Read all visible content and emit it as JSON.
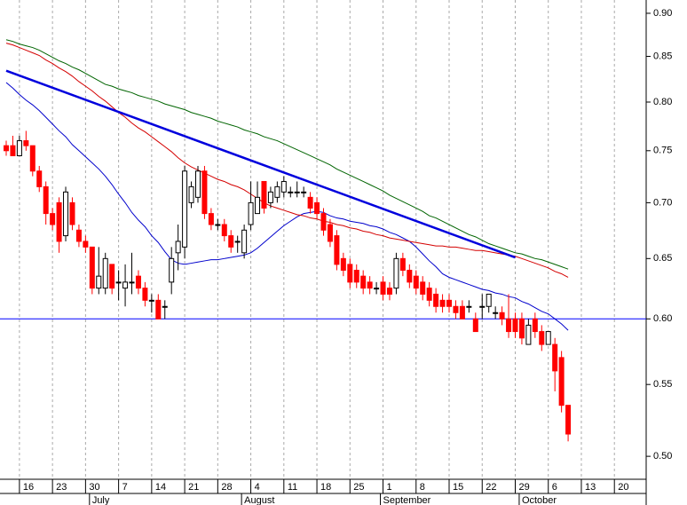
{
  "chart_data": {
    "type": "candlestick",
    "log": true,
    "ylim": [
      0.485,
      0.916
    ],
    "yticks": [
      {
        "value": 0.5,
        "label": "0.50"
      },
      {
        "value": 0.55,
        "label": "0.55"
      },
      {
        "value": 0.6,
        "label": "0.60"
      },
      {
        "value": 0.65,
        "label": "0.65"
      },
      {
        "value": 0.7,
        "label": "0.70"
      },
      {
        "value": 0.75,
        "label": "0.75"
      },
      {
        "value": 0.8,
        "label": "0.80"
      },
      {
        "value": 0.85,
        "label": "0.85"
      },
      {
        "value": 0.9,
        "label": "0.90"
      }
    ],
    "grid": true,
    "up_color": "#ffffff",
    "down_color": "#ff0000",
    "categories": [
      null,
      null,
      "16",
      null,
      null,
      null,
      null,
      "23",
      null,
      null,
      null,
      null,
      "30",
      null,
      null,
      null,
      null,
      "7",
      null,
      null,
      null,
      null,
      "14",
      null,
      null,
      null,
      null,
      "21",
      null,
      null,
      null,
      null,
      "28",
      null,
      null,
      null,
      null,
      "4",
      null,
      null,
      null,
      null,
      "11",
      null,
      null,
      null,
      null,
      "18",
      null,
      null,
      null,
      null,
      "25",
      null,
      null,
      null,
      null,
      "1",
      null,
      null,
      null,
      null,
      "8",
      null,
      null,
      null,
      null,
      "15",
      null,
      null,
      null,
      null,
      "22",
      null,
      null,
      null,
      null,
      "29",
      null,
      null,
      null,
      null,
      "6",
      null,
      null,
      null,
      null,
      "13",
      null,
      null,
      null,
      null,
      "20",
      null,
      null,
      null,
      null
    ],
    "months": [
      null,
      null,
      null,
      null,
      null,
      null,
      null,
      null,
      null,
      null,
      null,
      null,
      null,
      "July",
      null,
      null,
      null,
      null,
      null,
      null,
      null,
      null,
      null,
      null,
      null,
      null,
      null,
      null,
      null,
      null,
      null,
      null,
      null,
      null,
      null,
      null,
      "August",
      null,
      null,
      null,
      null,
      null,
      null,
      null,
      null,
      null,
      null,
      null,
      null,
      null,
      null,
      null,
      null,
      null,
      null,
      null,
      null,
      "September",
      null,
      null,
      null,
      null,
      null,
      null,
      null,
      null,
      null,
      null,
      null,
      null,
      null,
      null,
      null,
      null,
      null,
      null,
      null,
      null,
      "October",
      null,
      null,
      null,
      null,
      null,
      null,
      null,
      null,
      null,
      null,
      null,
      null,
      null,
      null,
      null,
      null,
      null
    ],
    "open": [
      0.755,
      0.755,
      0.745,
      0.76,
      0.755,
      0.73,
      0.715,
      0.69,
      0.7,
      0.67,
      0.7,
      0.675,
      0.665,
      0.66,
      0.625,
      0.625,
      0.645,
      0.63,
      0.625,
      0.63,
      0.635,
      0.625,
      0.615,
      0.615,
      0.61,
      0.63,
      0.655,
      0.66,
      0.7,
      0.705,
      0.73,
      0.69,
      0.68,
      0.68,
      0.67,
      0.665,
      0.655,
      0.68,
      0.69,
      0.72,
      0.7,
      0.705,
      0.71,
      0.71,
      0.71,
      0.71,
      0.705,
      0.7,
      0.69,
      0.68,
      0.67,
      0.65,
      0.645,
      0.64,
      0.635,
      0.63,
      0.625,
      0.63,
      0.625,
      0.625,
      0.65,
      0.64,
      0.635,
      0.63,
      0.625,
      0.62,
      0.615,
      0.615,
      0.61,
      0.61,
      0.61,
      0.6,
      0.61,
      0.61,
      0.605,
      0.605,
      0.6,
      0.6,
      0.6,
      0.58,
      0.6,
      0.59,
      0.58,
      0.58,
      0.57,
      0.535,
      null,
      null,
      null,
      null,
      null,
      null,
      null,
      null,
      null,
      null,
      null
    ],
    "high": [
      0.76,
      0.765,
      0.765,
      0.77,
      0.755,
      0.735,
      0.72,
      0.695,
      0.705,
      0.715,
      0.705,
      0.68,
      0.67,
      0.66,
      0.66,
      0.655,
      0.645,
      0.64,
      0.645,
      0.655,
      0.64,
      0.63,
      0.62,
      0.62,
      0.615,
      0.66,
      0.68,
      0.735,
      0.72,
      0.735,
      0.735,
      0.695,
      0.685,
      0.685,
      0.675,
      0.67,
      0.68,
      0.72,
      0.72,
      0.72,
      0.715,
      0.72,
      0.725,
      0.715,
      0.72,
      0.715,
      0.71,
      0.705,
      0.695,
      0.685,
      0.675,
      0.655,
      0.65,
      0.645,
      0.64,
      0.635,
      0.63,
      0.635,
      0.63,
      0.655,
      0.655,
      0.645,
      0.64,
      0.635,
      0.63,
      0.625,
      0.62,
      0.62,
      0.615,
      0.615,
      0.615,
      0.605,
      0.62,
      0.62,
      0.61,
      0.61,
      0.62,
      0.605,
      0.605,
      0.6,
      0.605,
      0.595,
      0.59,
      0.585,
      0.575,
      0.535,
      null,
      null,
      null,
      null,
      null,
      null,
      null,
      null,
      null,
      null,
      null
    ],
    "low": [
      0.745,
      0.745,
      0.745,
      0.75,
      0.725,
      0.71,
      0.68,
      0.675,
      0.655,
      0.665,
      0.675,
      0.66,
      0.655,
      0.62,
      0.62,
      0.62,
      0.62,
      0.615,
      0.61,
      0.62,
      0.62,
      0.61,
      0.605,
      0.6,
      0.6,
      0.62,
      0.64,
      0.65,
      0.695,
      0.7,
      0.685,
      0.675,
      0.675,
      0.665,
      0.655,
      0.655,
      0.65,
      0.675,
      0.69,
      0.69,
      0.695,
      0.7,
      0.705,
      0.705,
      0.705,
      0.705,
      0.69,
      0.685,
      0.67,
      0.66,
      0.64,
      0.635,
      0.625,
      0.625,
      0.62,
      0.62,
      0.62,
      0.615,
      0.615,
      0.62,
      0.635,
      0.625,
      0.62,
      0.615,
      0.61,
      0.605,
      0.605,
      0.605,
      0.6,
      0.6,
      0.605,
      0.59,
      0.6,
      0.605,
      0.6,
      0.595,
      0.585,
      0.585,
      0.58,
      0.58,
      0.585,
      0.575,
      0.58,
      0.545,
      0.53,
      0.51,
      null,
      null,
      null,
      null,
      null,
      null,
      null,
      null,
      null,
      null,
      null
    ],
    "close": [
      0.75,
      0.745,
      0.76,
      0.755,
      0.73,
      0.715,
      0.69,
      0.68,
      0.665,
      0.71,
      0.68,
      0.665,
      0.66,
      0.625,
      0.635,
      0.65,
      0.625,
      0.63,
      0.63,
      0.63,
      0.625,
      0.615,
      0.615,
      0.6,
      0.61,
      0.65,
      0.665,
      0.73,
      0.715,
      0.73,
      0.69,
      0.68,
      0.68,
      0.67,
      0.66,
      0.665,
      0.675,
      0.7,
      0.705,
      0.695,
      0.71,
      0.715,
      0.72,
      0.71,
      0.71,
      0.71,
      0.695,
      0.69,
      0.675,
      0.665,
      0.645,
      0.64,
      0.63,
      0.63,
      0.625,
      0.625,
      0.625,
      0.62,
      0.62,
      0.65,
      0.64,
      0.63,
      0.625,
      0.62,
      0.615,
      0.61,
      0.61,
      0.61,
      0.605,
      0.6,
      0.61,
      0.59,
      0.61,
      0.62,
      0.605,
      0.6,
      0.59,
      0.59,
      0.585,
      0.595,
      0.59,
      0.58,
      0.59,
      0.56,
      0.535,
      0.515,
      null,
      null,
      null,
      null,
      null,
      null,
      null,
      null,
      null,
      null,
      null
    ],
    "lines": [
      {
        "color": "#0000cc",
        "values": [
          0.821,
          0.815,
          0.808,
          0.802,
          0.797,
          0.791,
          0.784,
          0.777,
          0.77,
          0.764,
          0.756,
          0.75,
          0.744,
          0.738,
          0.732,
          0.725,
          0.717,
          0.708,
          0.7,
          0.691,
          0.684,
          0.678,
          0.67,
          0.664,
          0.656,
          0.649,
          0.646,
          0.645,
          0.646,
          0.647,
          0.648,
          0.649,
          0.649,
          0.65,
          0.651,
          0.652,
          0.653,
          0.655,
          0.659,
          0.664,
          0.669,
          0.674,
          0.679,
          0.683,
          0.687,
          0.69,
          0.691,
          0.692,
          0.691,
          0.688,
          0.686,
          0.685,
          0.683,
          0.682,
          0.681,
          0.679,
          0.678,
          0.676,
          0.673,
          0.671,
          0.668,
          0.665,
          0.66,
          0.654,
          0.648,
          0.643,
          0.637,
          0.634,
          0.632,
          0.63,
          0.628,
          0.626,
          0.624,
          0.623,
          0.621,
          0.62,
          0.618,
          0.617,
          0.614,
          0.612,
          0.609,
          0.606,
          0.604,
          0.6,
          0.596,
          0.591,
          null,
          null,
          null,
          null,
          null,
          null,
          null,
          null,
          null,
          null,
          null
        ]
      },
      {
        "color": "#d40000",
        "values": [
          0.865,
          0.863,
          0.86,
          0.857,
          0.854,
          0.851,
          0.846,
          0.842,
          0.837,
          0.833,
          0.828,
          0.822,
          0.817,
          0.812,
          0.806,
          0.801,
          0.795,
          0.789,
          0.784,
          0.778,
          0.773,
          0.769,
          0.764,
          0.759,
          0.754,
          0.749,
          0.743,
          0.738,
          0.734,
          0.731,
          0.728,
          0.725,
          0.722,
          0.72,
          0.717,
          0.715,
          0.712,
          0.708,
          0.704,
          0.7,
          0.697,
          0.695,
          0.693,
          0.691,
          0.689,
          0.688,
          0.686,
          0.685,
          0.683,
          0.682,
          0.68,
          0.679,
          0.677,
          0.676,
          0.674,
          0.673,
          0.671,
          0.67,
          0.668,
          0.667,
          0.666,
          0.665,
          0.664,
          0.663,
          0.662,
          0.661,
          0.661,
          0.66,
          0.66,
          0.659,
          0.658,
          0.657,
          0.657,
          0.656,
          0.655,
          0.654,
          0.653,
          0.652,
          0.65,
          0.648,
          0.646,
          0.644,
          0.642,
          0.639,
          0.637,
          0.634,
          null,
          null,
          null,
          null,
          null,
          null,
          null,
          null,
          null,
          null,
          null
        ]
      },
      {
        "color": "#006400",
        "values": [
          0.869,
          0.867,
          0.864,
          0.862,
          0.86,
          0.857,
          0.853,
          0.849,
          0.845,
          0.842,
          0.838,
          0.835,
          0.831,
          0.827,
          0.823,
          0.819,
          0.817,
          0.814,
          0.812,
          0.81,
          0.807,
          0.805,
          0.803,
          0.801,
          0.798,
          0.796,
          0.794,
          0.792,
          0.789,
          0.787,
          0.785,
          0.783,
          0.78,
          0.778,
          0.776,
          0.774,
          0.771,
          0.769,
          0.767,
          0.764,
          0.762,
          0.76,
          0.757,
          0.754,
          0.751,
          0.748,
          0.745,
          0.742,
          0.739,
          0.736,
          0.732,
          0.729,
          0.726,
          0.723,
          0.72,
          0.717,
          0.714,
          0.711,
          0.707,
          0.704,
          0.701,
          0.698,
          0.695,
          0.692,
          0.688,
          0.686,
          0.683,
          0.68,
          0.677,
          0.674,
          0.671,
          0.669,
          0.666,
          0.663,
          0.661,
          0.659,
          0.657,
          0.655,
          0.654,
          0.652,
          0.65,
          0.649,
          0.647,
          0.645,
          0.643,
          0.641,
          null,
          null,
          null,
          null,
          null,
          null,
          null,
          null,
          null,
          null,
          null
        ]
      },
      {
        "color": "#0000dd",
        "trend": true,
        "values": [
          0.834,
          null,
          null,
          null,
          null,
          null,
          null,
          null,
          null,
          null,
          null,
          null,
          null,
          null,
          null,
          null,
          null,
          null,
          null,
          null,
          null,
          null,
          null,
          null,
          null,
          null,
          null,
          null,
          null,
          null,
          null,
          null,
          null,
          null,
          null,
          null,
          null,
          null,
          null,
          null,
          null,
          null,
          null,
          null,
          null,
          null,
          null,
          null,
          null,
          null,
          null,
          null,
          null,
          null,
          null,
          null,
          null,
          null,
          null,
          null,
          null,
          null,
          null,
          null,
          null,
          null,
          null,
          null,
          null,
          null,
          null,
          null,
          null,
          null,
          null,
          null,
          null,
          0.651,
          null,
          null,
          null,
          null,
          null,
          null,
          null,
          null,
          null,
          null,
          null,
          null,
          null,
          null,
          null,
          null,
          null,
          null,
          null
        ]
      }
    ],
    "hline": {
      "value": 0.6,
      "color": "#0000ff"
    }
  }
}
